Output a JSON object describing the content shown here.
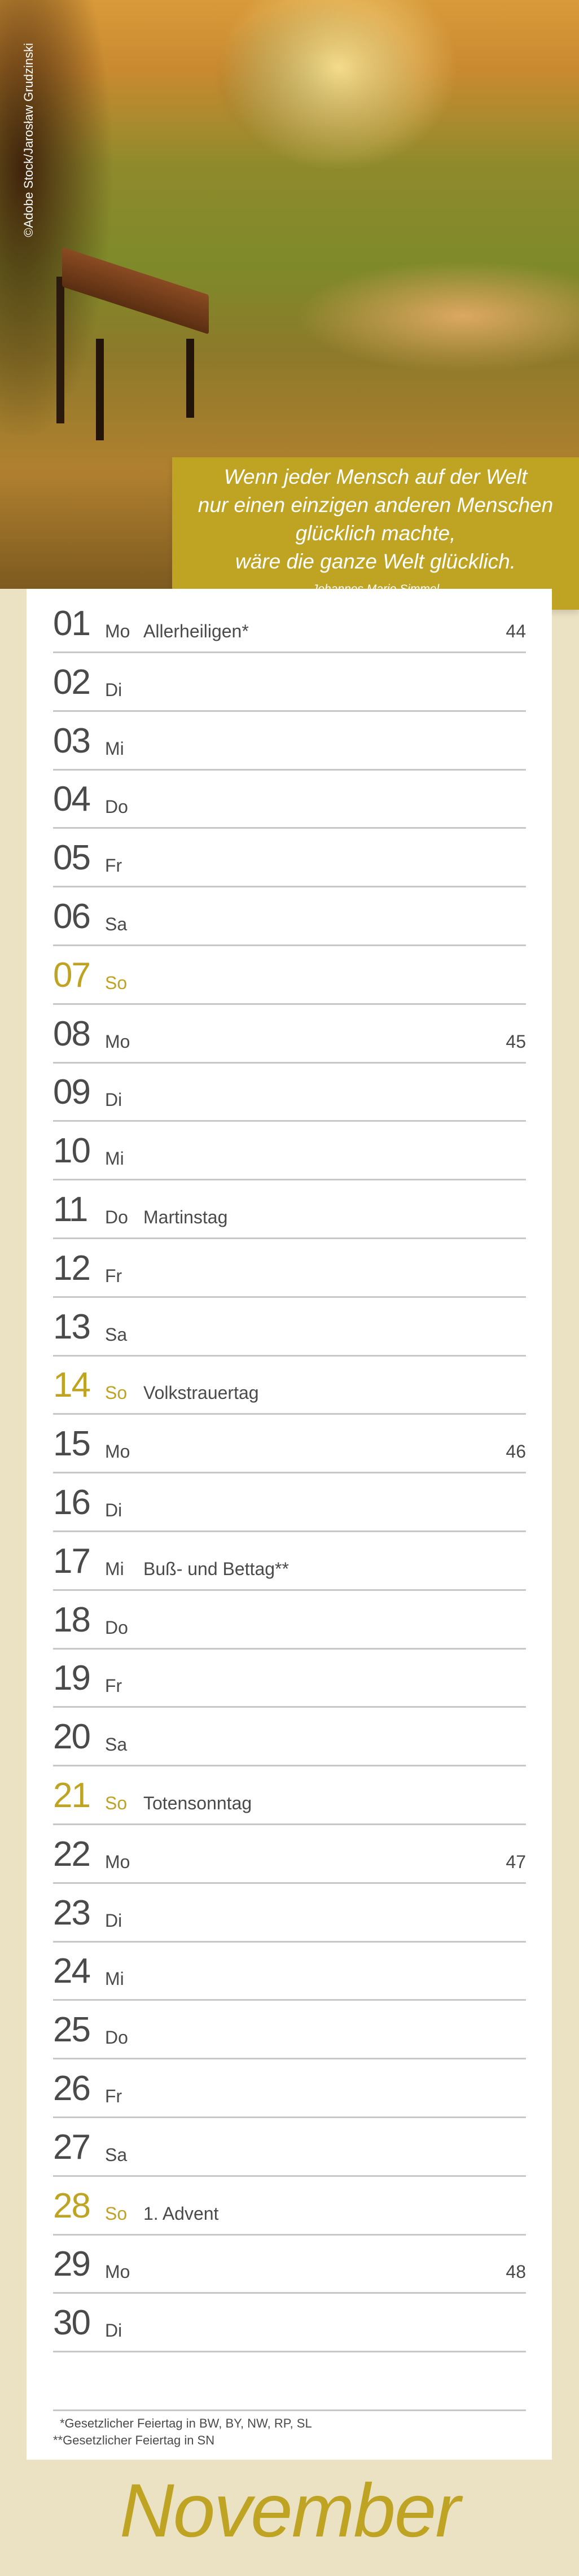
{
  "photo": {
    "credit": "©Adobe Stock/Jarosław Grudzinski"
  },
  "quote": {
    "lines": [
      "Wenn jeder Mensch auf der Welt",
      "nur einen einzigen anderen Menschen",
      "glücklich machte,",
      "wäre die ganze Welt glücklich."
    ],
    "author": "Johannes Mario Simmel"
  },
  "colors": {
    "accent": "#bfa322",
    "background": "#ebe1c3",
    "text": "#4a4a4a",
    "divider": "#c8c8c8"
  },
  "days": [
    {
      "num": "01",
      "day": "Mo",
      "holiday": "Allerheiligen*",
      "week": "44"
    },
    {
      "num": "02",
      "day": "Di"
    },
    {
      "num": "03",
      "day": "Mi"
    },
    {
      "num": "04",
      "day": "Do"
    },
    {
      "num": "05",
      "day": "Fr"
    },
    {
      "num": "06",
      "day": "Sa"
    },
    {
      "num": "07",
      "day": "So",
      "sunday": true
    },
    {
      "num": "08",
      "day": "Mo",
      "week": "45"
    },
    {
      "num": "09",
      "day": "Di"
    },
    {
      "num": "10",
      "day": "Mi"
    },
    {
      "num": "11",
      "day": "Do",
      "holiday": "Martinstag"
    },
    {
      "num": "12",
      "day": "Fr"
    },
    {
      "num": "13",
      "day": "Sa"
    },
    {
      "num": "14",
      "day": "So",
      "holiday": "Volkstrauertag",
      "sunday": true
    },
    {
      "num": "15",
      "day": "Mo",
      "week": "46"
    },
    {
      "num": "16",
      "day": "Di"
    },
    {
      "num": "17",
      "day": "Mi",
      "holiday": "Buß- und Bettag**"
    },
    {
      "num": "18",
      "day": "Do"
    },
    {
      "num": "19",
      "day": "Fr"
    },
    {
      "num": "20",
      "day": "Sa"
    },
    {
      "num": "21",
      "day": "So",
      "holiday": "Totensonntag",
      "sunday": true
    },
    {
      "num": "22",
      "day": "Mo",
      "week": "47"
    },
    {
      "num": "23",
      "day": "Di"
    },
    {
      "num": "24",
      "day": "Mi"
    },
    {
      "num": "25",
      "day": "Do"
    },
    {
      "num": "26",
      "day": "Fr"
    },
    {
      "num": "27",
      "day": "Sa"
    },
    {
      "num": "28",
      "day": "So",
      "holiday": "1. Advent",
      "sunday": true
    },
    {
      "num": "29",
      "day": "Mo",
      "week": "48"
    },
    {
      "num": "30",
      "day": "Di"
    }
  ],
  "footnotes": [
    "*Gesetzlicher Feiertag in BW, BY, NW, RP, SL",
    "**Gesetzlicher Feiertag in SN"
  ],
  "month": "November"
}
